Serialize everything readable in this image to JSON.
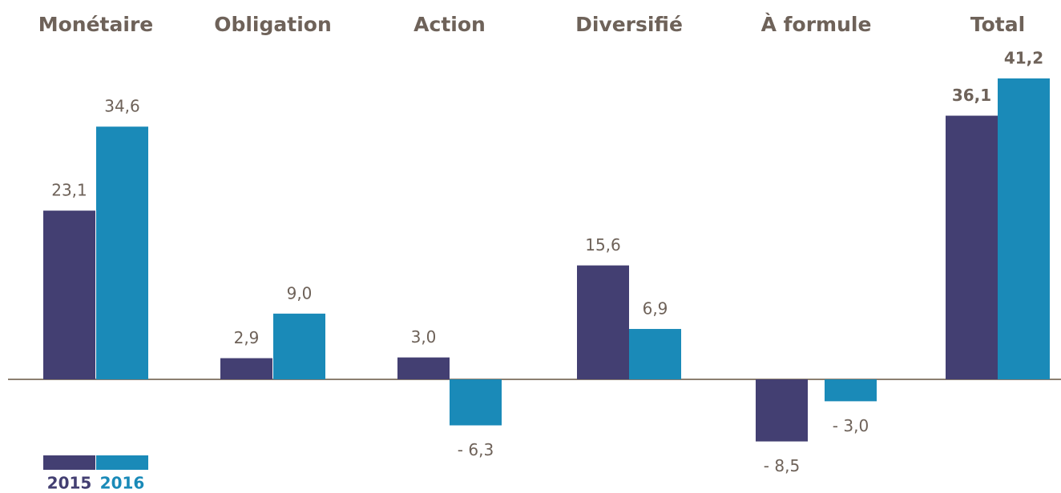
{
  "chart_data": {
    "type": "bar",
    "categories": [
      "Monétaire",
      "Obligation",
      "Action",
      "Diversifié",
      "À formule",
      "Total"
    ],
    "series": [
      {
        "name": "2015",
        "color": "#433f72",
        "values": [
          23.1,
          2.9,
          3.0,
          15.6,
          -8.5,
          36.1
        ],
        "value_labels": [
          "23,1",
          "2,9",
          "3,0",
          "15,6",
          "- 8,5",
          "36,1"
        ]
      },
      {
        "name": "2016",
        "color": "#1a8ab8",
        "values": [
          34.6,
          9.0,
          -6.3,
          6.9,
          -3.0,
          41.2
        ],
        "value_labels": [
          "34,6",
          "9,0",
          "- 6,3",
          "6,9",
          "- 3,0",
          "41,2"
        ]
      }
    ]
  }
}
